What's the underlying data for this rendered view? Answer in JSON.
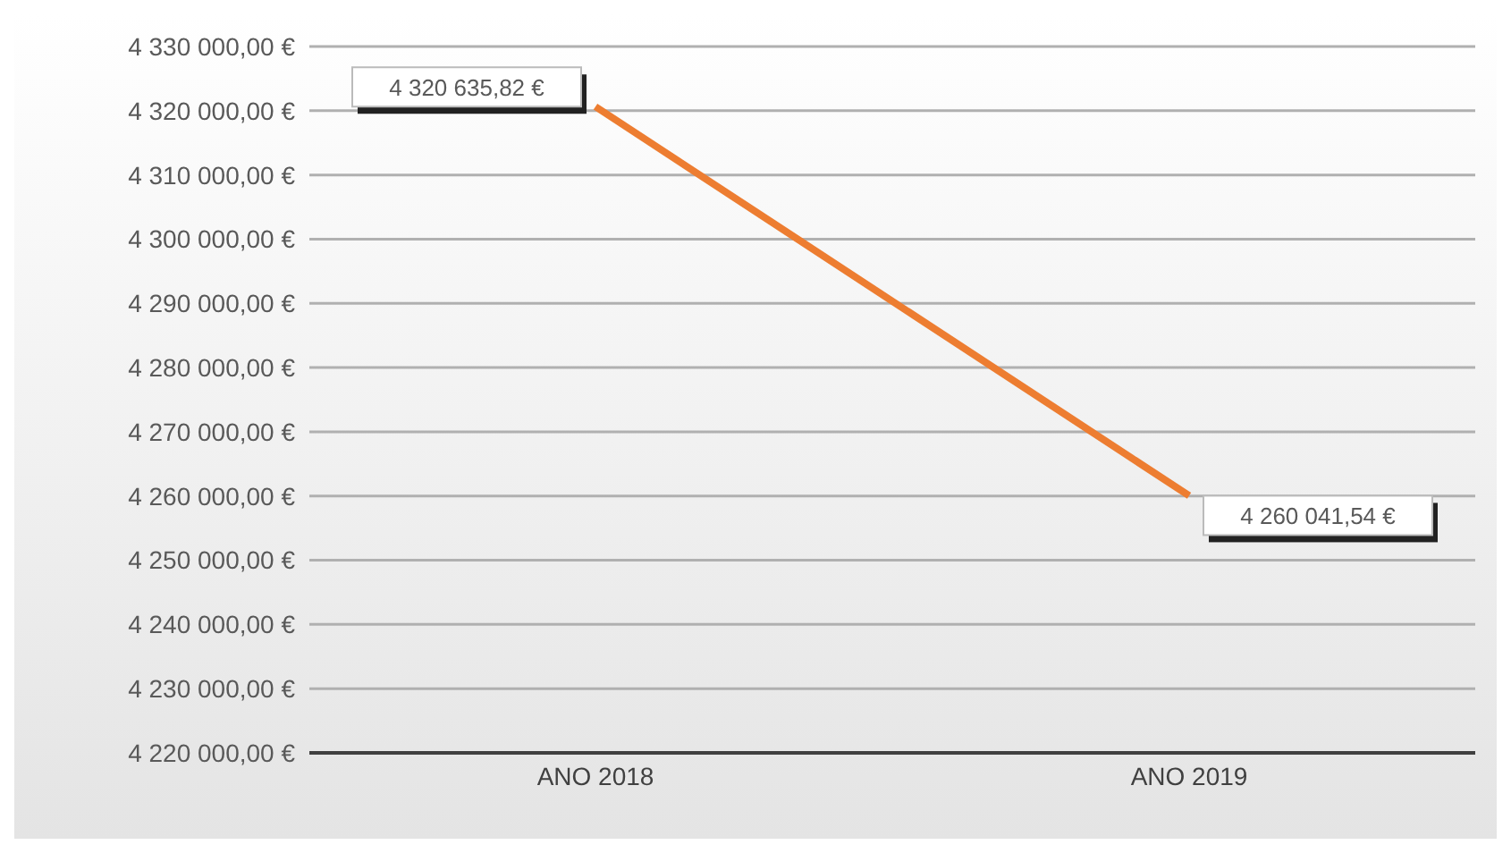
{
  "chart_data": {
    "type": "line",
    "categories": [
      "ANO 2018",
      "ANO 2019"
    ],
    "series": [
      {
        "color": "#ed7d31",
        "values": [
          4320635.82,
          4260041.54
        ]
      }
    ],
    "value_labels": [
      "4 320 635,82 €",
      "4 260 041,54 €"
    ],
    "ylim": [
      4220000,
      4330000
    ],
    "yticks": [
      {
        "value": 4220000,
        "label": "4 220 000,00 €"
      },
      {
        "value": 4230000,
        "label": "4 230 000,00 €"
      },
      {
        "value": 4240000,
        "label": "4 240 000,00 €"
      },
      {
        "value": 4250000,
        "label": "4 250 000,00 €"
      },
      {
        "value": 4260000,
        "label": "4 260 000,00 €"
      },
      {
        "value": 4270000,
        "label": "4 270 000,00 €"
      },
      {
        "value": 4280000,
        "label": "4 280 000,00 €"
      },
      {
        "value": 4290000,
        "label": "4 290 000,00 €"
      },
      {
        "value": 4300000,
        "label": "4 300 000,00 €"
      },
      {
        "value": 4310000,
        "label": "4 310 000,00 €"
      },
      {
        "value": 4320000,
        "label": "4 320 000,00 €"
      },
      {
        "value": 4330000,
        "label": "4 330 000,00 €"
      }
    ],
    "grid": "y",
    "marker": "none",
    "legend": false
  }
}
